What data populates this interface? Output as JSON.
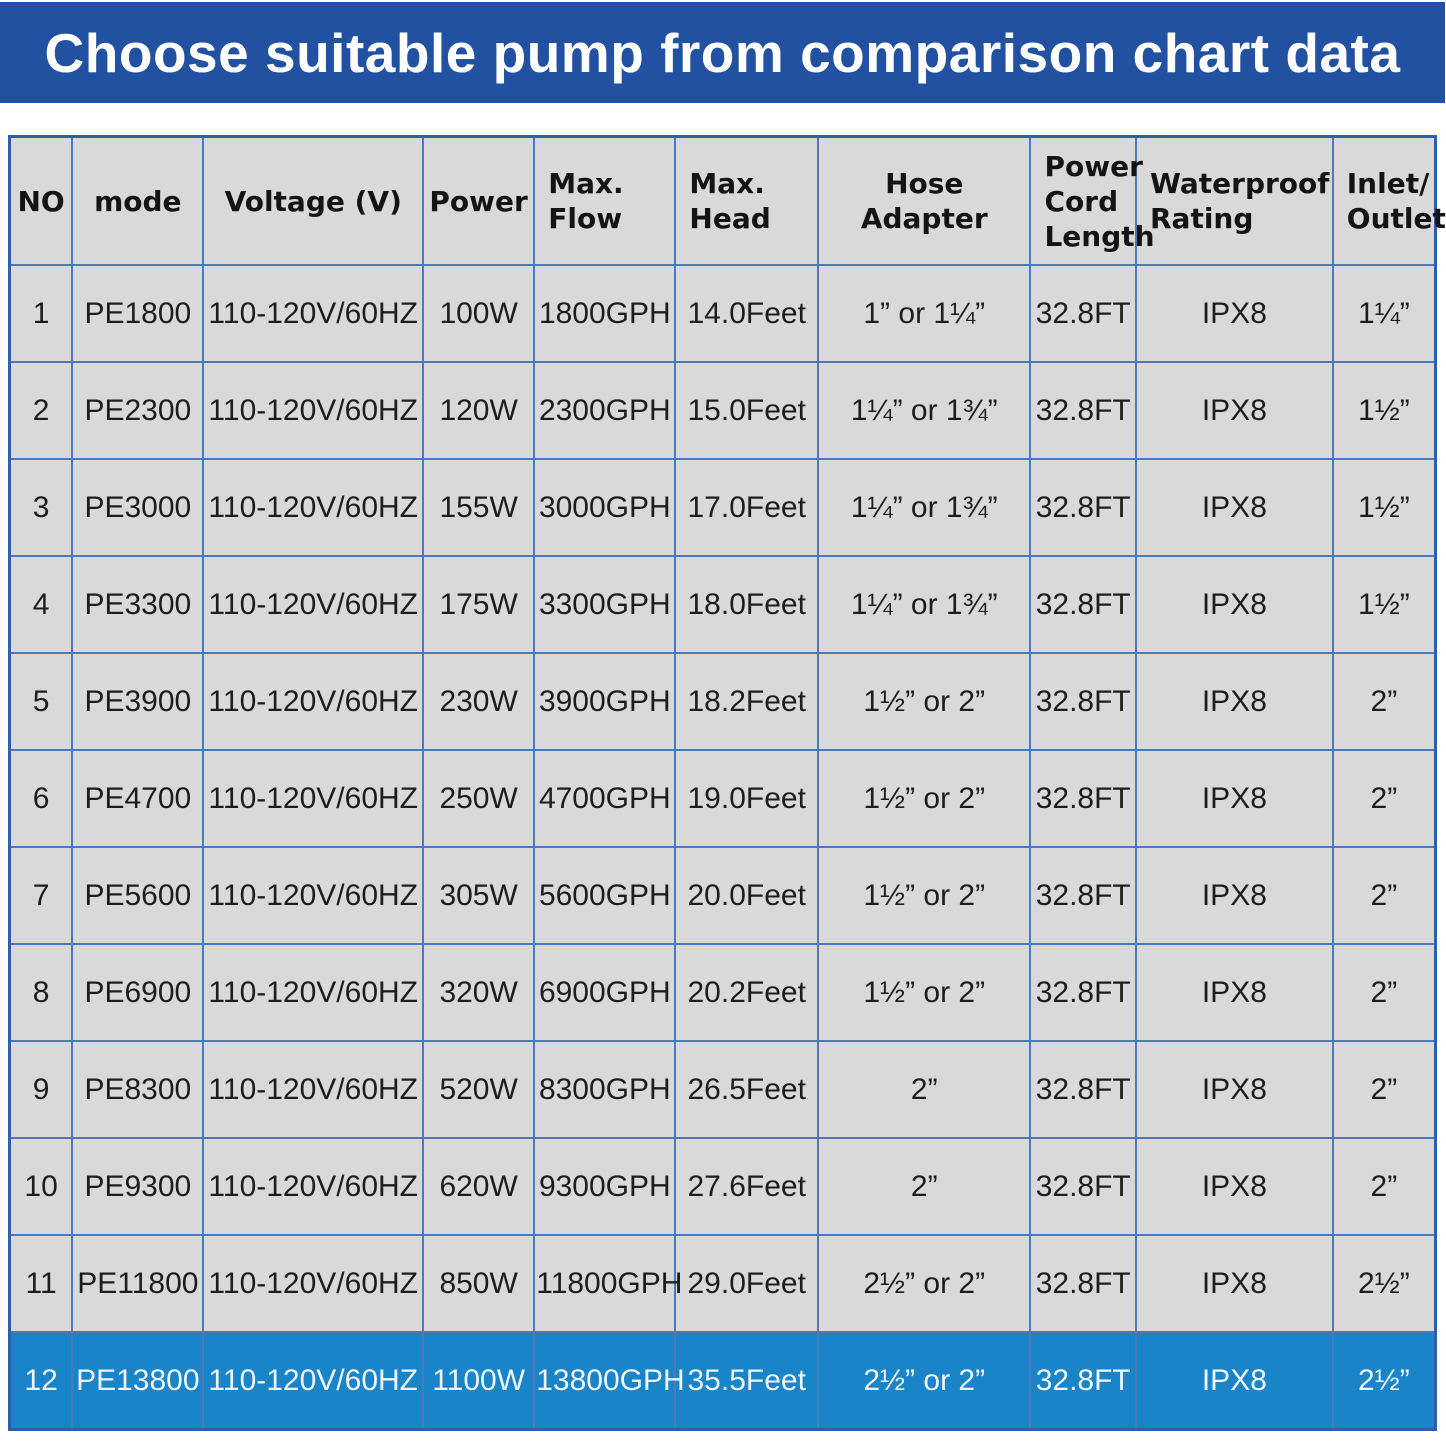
{
  "title": "Choose suitable pump from comparison chart data",
  "colors": {
    "banner_bg": "#2151a0",
    "banner_text": "#ffffff",
    "cell_bg": "#d9d9d9",
    "grid_border": "#4a79bd",
    "outer_border": "#2e5fa8",
    "highlight_row_bg": "#1a84c8",
    "highlight_row_text": "#eef6fc"
  },
  "chart_data": {
    "type": "table",
    "title": "Choose suitable pump from comparison chart data",
    "columns": [
      "NO",
      "mode",
      "Voltage (V)",
      "Power",
      "Max.\nFlow",
      "Max.\nHead",
      "Hose Adapter",
      "Power\nCord\nLength",
      "Waterproof\nRating",
      "Inlet/\nOutlet"
    ],
    "rows": [
      [
        "1",
        "PE1800",
        "110-120V/60HZ",
        "100W",
        "1800GPH",
        "14.0Feet",
        "1” or 1¼”",
        "32.8FT",
        "IPX8",
        "1¼”"
      ],
      [
        "2",
        "PE2300",
        "110-120V/60HZ",
        "120W",
        "2300GPH",
        "15.0Feet",
        "1¼” or 1¾”",
        "32.8FT",
        "IPX8",
        "1½”"
      ],
      [
        "3",
        "PE3000",
        "110-120V/60HZ",
        "155W",
        "3000GPH",
        "17.0Feet",
        "1¼” or 1¾”",
        "32.8FT",
        "IPX8",
        "1½”"
      ],
      [
        "4",
        "PE3300",
        "110-120V/60HZ",
        "175W",
        "3300GPH",
        "18.0Feet",
        "1¼” or 1¾”",
        "32.8FT",
        "IPX8",
        "1½”"
      ],
      [
        "5",
        "PE3900",
        "110-120V/60HZ",
        "230W",
        "3900GPH",
        "18.2Feet",
        "1½” or 2”",
        "32.8FT",
        "IPX8",
        "2”"
      ],
      [
        "6",
        "PE4700",
        "110-120V/60HZ",
        "250W",
        "4700GPH",
        "19.0Feet",
        "1½” or 2”",
        "32.8FT",
        "IPX8",
        "2”"
      ],
      [
        "7",
        "PE5600",
        "110-120V/60HZ",
        "305W",
        "5600GPH",
        "20.0Feet",
        "1½” or 2”",
        "32.8FT",
        "IPX8",
        "2”"
      ],
      [
        "8",
        "PE6900",
        "110-120V/60HZ",
        "320W",
        "6900GPH",
        "20.2Feet",
        "1½” or 2”",
        "32.8FT",
        "IPX8",
        "2”"
      ],
      [
        "9",
        "PE8300",
        "110-120V/60HZ",
        "520W",
        "8300GPH",
        "26.5Feet",
        "2”",
        "32.8FT",
        "IPX8",
        "2”"
      ],
      [
        "10",
        "PE9300",
        "110-120V/60HZ",
        "620W",
        "9300GPH",
        "27.6Feet",
        "2”",
        "32.8FT",
        "IPX8",
        "2”"
      ],
      [
        "11",
        "PE11800",
        "110-120V/60HZ",
        "850W",
        "11800GPH",
        "29.0Feet",
        "2½” or 2”",
        "32.8FT",
        "IPX8",
        "2½”"
      ],
      [
        "12",
        "PE13800",
        "110-120V/60HZ",
        "1100W",
        "13800GPH",
        "35.5Feet",
        "2½” or 2”",
        "32.8FT",
        "IPX8",
        "2½”"
      ]
    ],
    "highlighted_row_index": 11,
    "layout": "grid on, highlighted last row, header row on top"
  }
}
